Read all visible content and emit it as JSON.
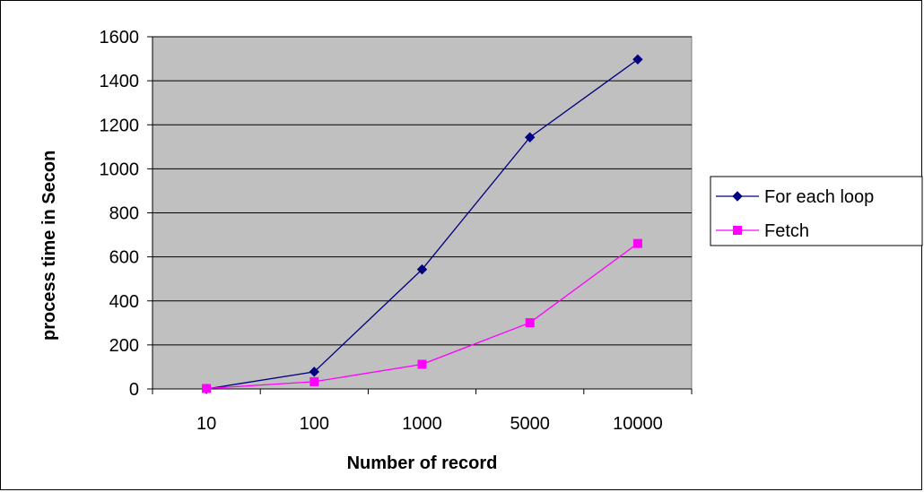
{
  "chart_data": {
    "type": "line",
    "title": "",
    "xlabel": "Number of record",
    "ylabel": "process time in Secon",
    "categories": [
      "10",
      "100",
      "1000",
      "5000",
      "10000"
    ],
    "ylim": [
      0,
      1600
    ],
    "yticks": [
      "0",
      "200",
      "400",
      "600",
      "800",
      "1000",
      "1200",
      "1400",
      "1600"
    ],
    "grid": true,
    "legend_position": "right",
    "series": [
      {
        "name": "For each loop",
        "values": [
          0,
          78,
          543,
          1143,
          1497
        ],
        "color": "#000080",
        "marker": "diamond"
      },
      {
        "name": "Fetch",
        "values": [
          2,
          33,
          112,
          301,
          661
        ],
        "color": "#ff00ff",
        "marker": "square"
      }
    ],
    "plot_background": "#c0c0c0"
  }
}
